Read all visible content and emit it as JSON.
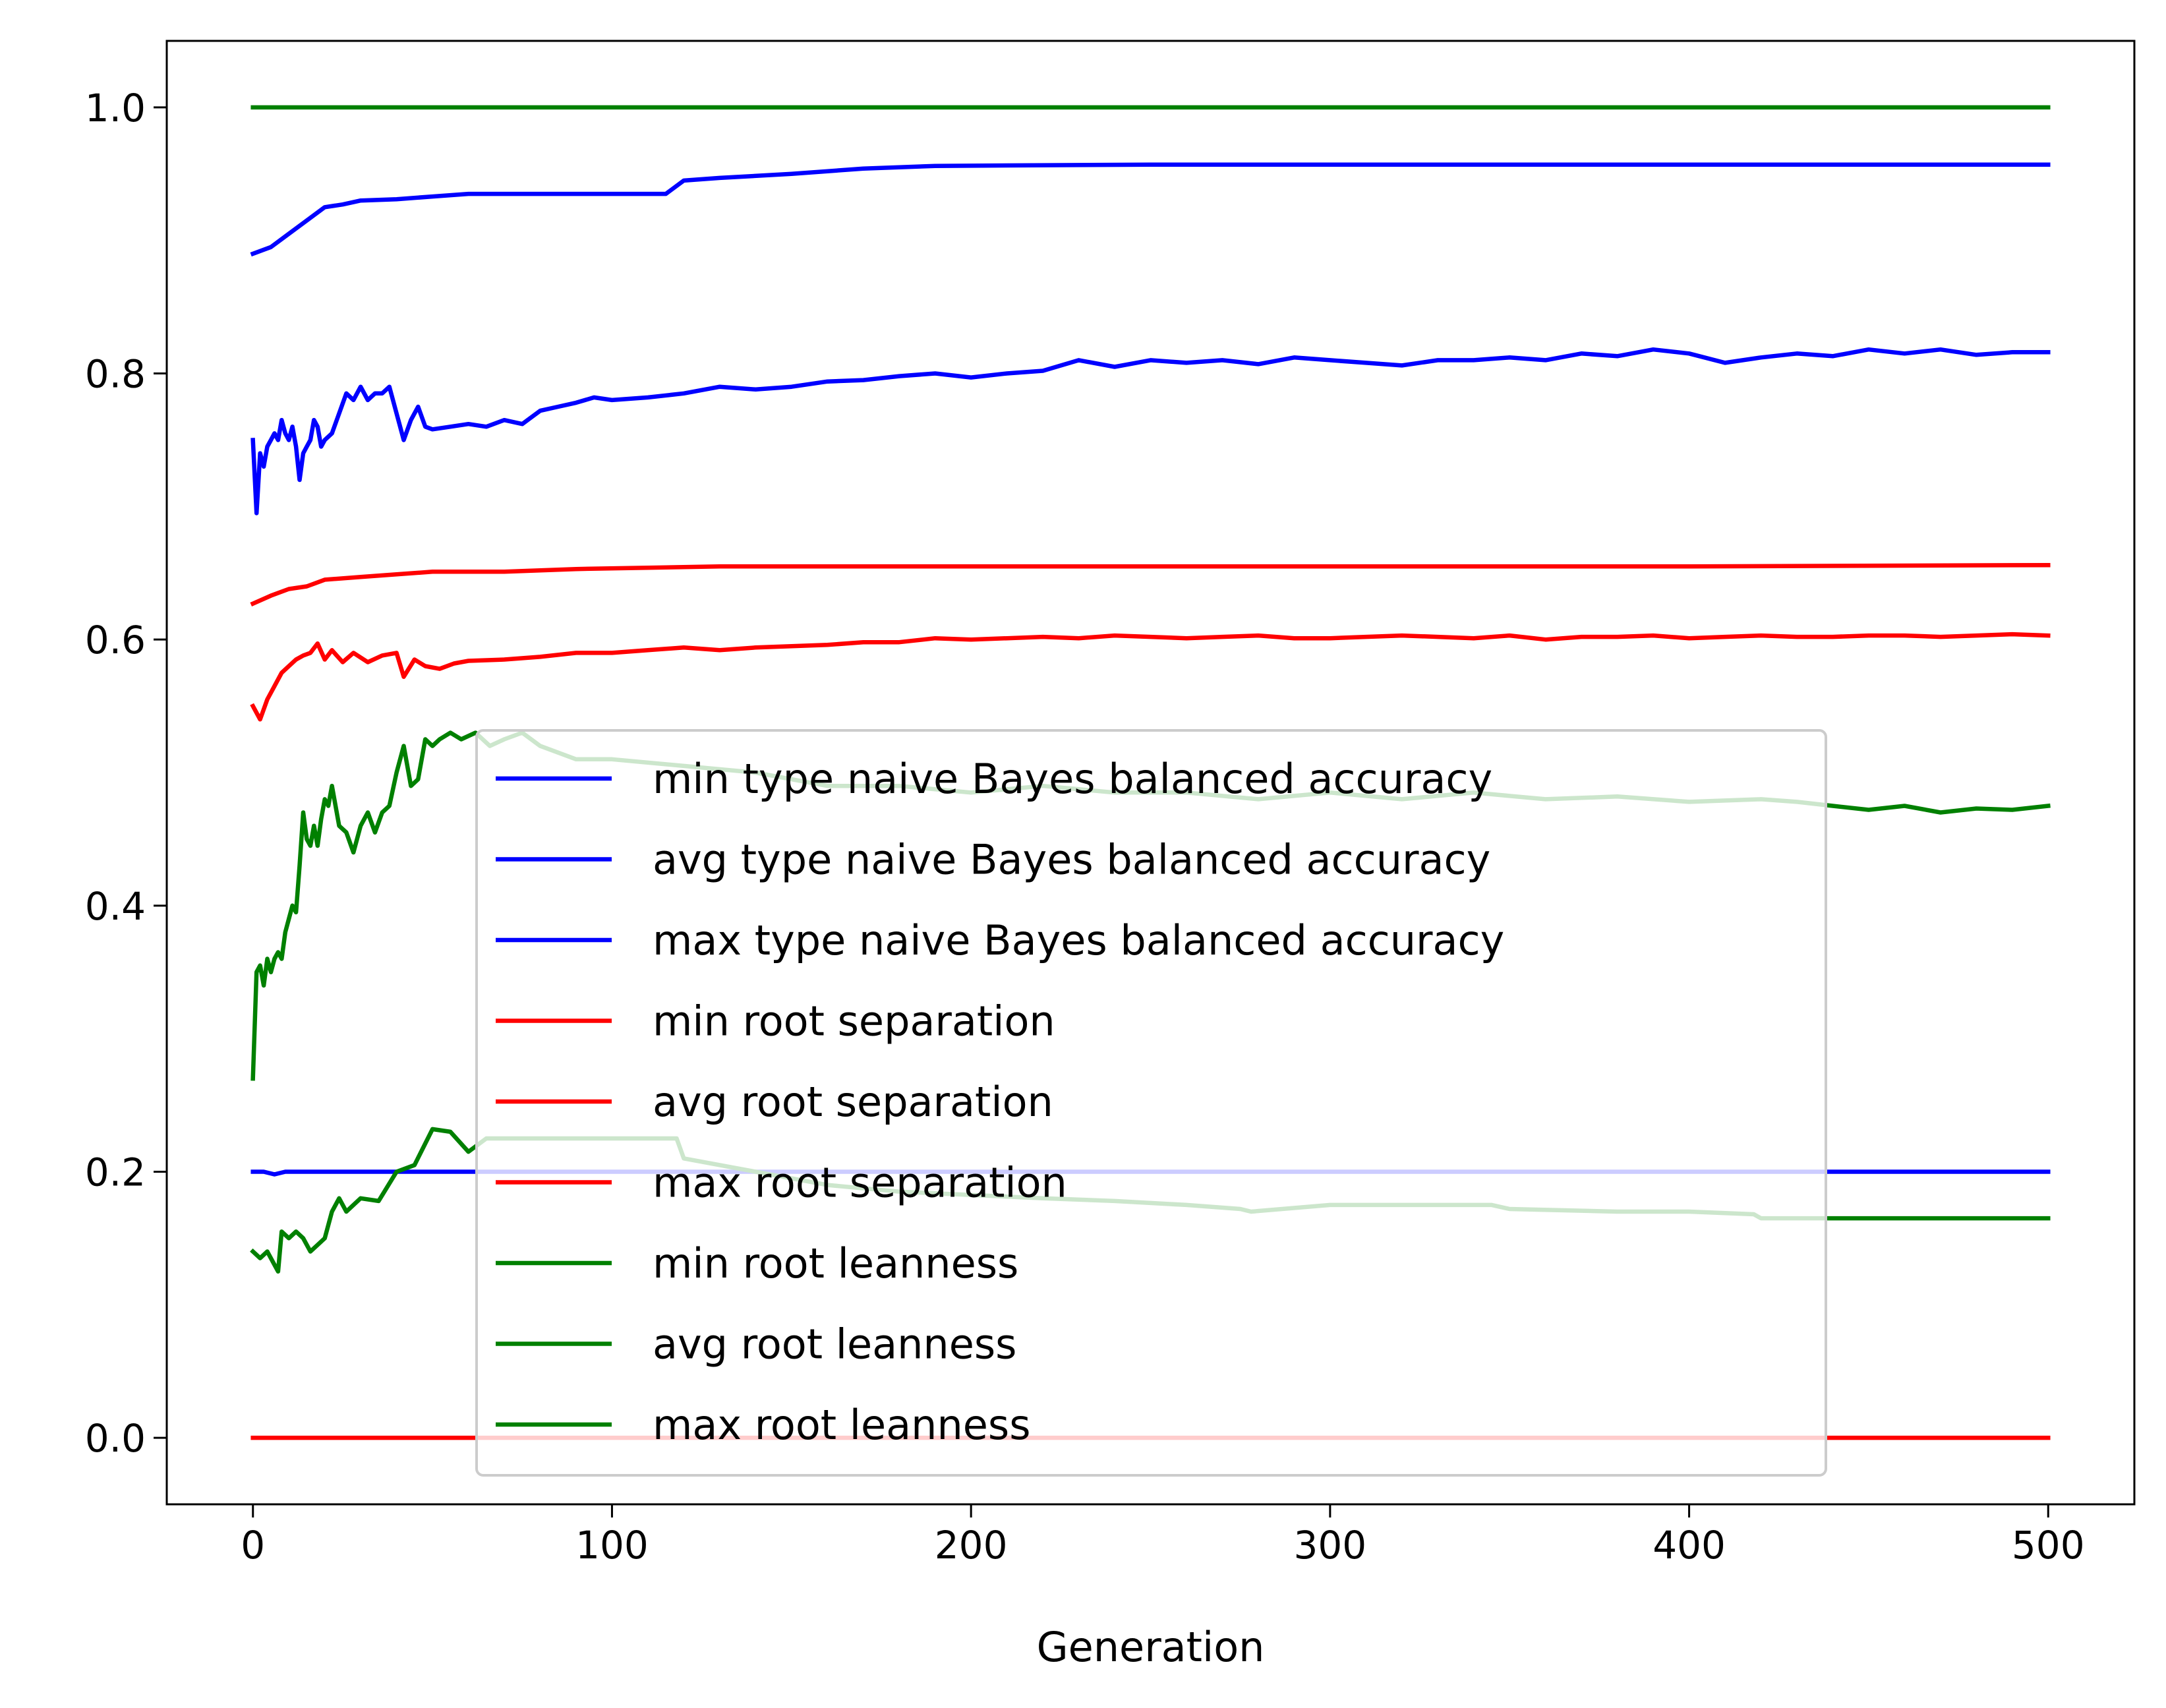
{
  "chart_data": {
    "type": "line",
    "xlabel": "Generation",
    "ylabel": "",
    "xlim": [
      -24,
      524
    ],
    "ylim": [
      -0.05,
      1.05
    ],
    "xticks": [
      0,
      100,
      200,
      300,
      400,
      500
    ],
    "yticks": [
      0.0,
      0.2,
      0.4,
      0.6,
      0.8,
      1.0
    ],
    "grid": false,
    "legend_position": "center",
    "series": [
      {
        "name": "min type naive Bayes balanced accuracy",
        "color": "#0000ff",
        "x": [
          0,
          3,
          6,
          9,
          500
        ],
        "y": [
          0.2,
          0.2,
          0.198,
          0.2,
          0.2
        ]
      },
      {
        "name": "avg type naive Bayes balanced accuracy",
        "color": "#0000ff",
        "x": [
          0,
          1,
          2,
          3,
          4,
          5,
          6,
          7,
          8,
          9,
          10,
          11,
          12,
          13,
          14,
          15,
          16,
          17,
          18,
          19,
          20,
          22,
          24,
          26,
          28,
          30,
          32,
          34,
          36,
          38,
          40,
          42,
          44,
          46,
          48,
          50,
          55,
          60,
          65,
          70,
          75,
          80,
          85,
          90,
          95,
          100,
          110,
          120,
          130,
          140,
          150,
          160,
          170,
          180,
          190,
          200,
          210,
          220,
          230,
          240,
          250,
          260,
          270,
          280,
          290,
          300,
          310,
          320,
          330,
          340,
          350,
          360,
          370,
          380,
          390,
          400,
          410,
          420,
          430,
          440,
          450,
          460,
          470,
          480,
          490,
          500
        ],
        "y": [
          0.75,
          0.695,
          0.74,
          0.73,
          0.745,
          0.75,
          0.755,
          0.75,
          0.765,
          0.755,
          0.75,
          0.76,
          0.745,
          0.72,
          0.74,
          0.745,
          0.75,
          0.765,
          0.76,
          0.745,
          0.75,
          0.755,
          0.77,
          0.785,
          0.78,
          0.79,
          0.78,
          0.785,
          0.785,
          0.79,
          0.77,
          0.75,
          0.765,
          0.775,
          0.76,
          0.758,
          0.76,
          0.762,
          0.76,
          0.765,
          0.762,
          0.772,
          0.775,
          0.778,
          0.782,
          0.78,
          0.782,
          0.785,
          0.79,
          0.788,
          0.79,
          0.794,
          0.795,
          0.798,
          0.8,
          0.797,
          0.8,
          0.802,
          0.81,
          0.805,
          0.81,
          0.808,
          0.81,
          0.807,
          0.812,
          0.81,
          0.808,
          0.806,
          0.81,
          0.81,
          0.812,
          0.81,
          0.815,
          0.813,
          0.818,
          0.815,
          0.808,
          0.812,
          0.815,
          0.813,
          0.818,
          0.815,
          0.818,
          0.814,
          0.816,
          0.816
        ]
      },
      {
        "name": "max type naive Bayes balanced accuracy",
        "color": "#0000ff",
        "x": [
          0,
          5,
          10,
          15,
          20,
          25,
          30,
          40,
          50,
          60,
          80,
          100,
          115,
          120,
          130,
          150,
          170,
          190,
          250,
          300,
          500
        ],
        "y": [
          0.89,
          0.895,
          0.905,
          0.915,
          0.925,
          0.927,
          0.93,
          0.931,
          0.933,
          0.935,
          0.935,
          0.935,
          0.935,
          0.945,
          0.947,
          0.95,
          0.954,
          0.956,
          0.957,
          0.957,
          0.957
        ]
      },
      {
        "name": "min root separation",
        "color": "#ff0000",
        "x": [
          0,
          500
        ],
        "y": [
          0.0,
          0.0
        ]
      },
      {
        "name": "avg root separation",
        "color": "#ff0000",
        "x": [
          0,
          2,
          4,
          6,
          8,
          10,
          12,
          14,
          16,
          18,
          20,
          22,
          25,
          28,
          32,
          36,
          40,
          42,
          45,
          48,
          52,
          56,
          60,
          70,
          80,
          90,
          100,
          110,
          120,
          130,
          140,
          150,
          160,
          170,
          180,
          190,
          200,
          210,
          220,
          230,
          240,
          250,
          260,
          270,
          280,
          290,
          300,
          310,
          320,
          330,
          340,
          350,
          360,
          370,
          380,
          390,
          400,
          410,
          420,
          430,
          440,
          450,
          460,
          470,
          480,
          490,
          500
        ],
        "y": [
          0.55,
          0.54,
          0.555,
          0.565,
          0.575,
          0.58,
          0.585,
          0.588,
          0.59,
          0.597,
          0.585,
          0.592,
          0.583,
          0.59,
          0.583,
          0.588,
          0.59,
          0.572,
          0.585,
          0.58,
          0.578,
          0.582,
          0.584,
          0.585,
          0.587,
          0.59,
          0.59,
          0.592,
          0.594,
          0.592,
          0.594,
          0.595,
          0.596,
          0.598,
          0.598,
          0.601,
          0.6,
          0.601,
          0.602,
          0.601,
          0.603,
          0.602,
          0.601,
          0.602,
          0.603,
          0.601,
          0.601,
          0.602,
          0.603,
          0.602,
          0.601,
          0.603,
          0.6,
          0.602,
          0.602,
          0.603,
          0.601,
          0.602,
          0.603,
          0.602,
          0.602,
          0.603,
          0.603,
          0.602,
          0.603,
          0.604,
          0.603
        ]
      },
      {
        "name": "max root separation",
        "color": "#ff0000",
        "x": [
          0,
          5,
          10,
          15,
          20,
          30,
          40,
          50,
          70,
          90,
          110,
          130,
          160,
          200,
          300,
          400,
          500
        ],
        "y": [
          0.627,
          0.633,
          0.638,
          0.64,
          0.645,
          0.647,
          0.649,
          0.651,
          0.651,
          0.653,
          0.654,
          0.655,
          0.655,
          0.655,
          0.655,
          0.655,
          0.656
        ]
      },
      {
        "name": "min root leanness",
        "color": "#008000",
        "x": [
          0,
          2,
          4,
          6,
          7,
          8,
          10,
          12,
          14,
          16,
          18,
          20,
          22,
          24,
          26,
          30,
          35,
          40,
          45,
          50,
          55,
          60,
          65,
          80,
          100,
          118,
          120,
          140,
          160,
          180,
          220,
          240,
          260,
          275,
          278,
          300,
          330,
          345,
          350,
          380,
          400,
          418,
          420,
          440,
          460,
          480,
          500
        ],
        "y": [
          0.14,
          0.135,
          0.14,
          0.13,
          0.125,
          0.155,
          0.15,
          0.155,
          0.15,
          0.14,
          0.145,
          0.15,
          0.17,
          0.18,
          0.17,
          0.18,
          0.178,
          0.2,
          0.205,
          0.232,
          0.23,
          0.215,
          0.225,
          0.225,
          0.225,
          0.225,
          0.21,
          0.2,
          0.19,
          0.185,
          0.18,
          0.178,
          0.175,
          0.172,
          0.17,
          0.175,
          0.175,
          0.175,
          0.172,
          0.17,
          0.17,
          0.168,
          0.165,
          0.165,
          0.165,
          0.165,
          0.165
        ]
      },
      {
        "name": "avg root leanness",
        "color": "#008000",
        "x": [
          0,
          1,
          2,
          3,
          4,
          5,
          6,
          7,
          8,
          9,
          10,
          11,
          12,
          13,
          14,
          15,
          16,
          17,
          18,
          19,
          20,
          21,
          22,
          24,
          26,
          28,
          30,
          32,
          34,
          36,
          38,
          40,
          42,
          44,
          46,
          48,
          50,
          52,
          55,
          58,
          62,
          66,
          70,
          75,
          80,
          90,
          100,
          120,
          140,
          160,
          180,
          200,
          220,
          240,
          260,
          280,
          300,
          320,
          340,
          360,
          380,
          400,
          420,
          430,
          440,
          450,
          460,
          470,
          480,
          490,
          500
        ],
        "y": [
          0.27,
          0.35,
          0.355,
          0.34,
          0.36,
          0.35,
          0.36,
          0.365,
          0.36,
          0.38,
          0.39,
          0.4,
          0.395,
          0.43,
          0.47,
          0.45,
          0.445,
          0.46,
          0.445,
          0.465,
          0.48,
          0.475,
          0.49,
          0.46,
          0.455,
          0.44,
          0.46,
          0.47,
          0.455,
          0.47,
          0.475,
          0.5,
          0.52,
          0.49,
          0.495,
          0.525,
          0.52,
          0.525,
          0.53,
          0.525,
          0.53,
          0.52,
          0.525,
          0.53,
          0.52,
          0.51,
          0.51,
          0.505,
          0.5,
          0.49,
          0.49,
          0.485,
          0.49,
          0.485,
          0.485,
          0.48,
          0.485,
          0.48,
          0.485,
          0.48,
          0.482,
          0.478,
          0.48,
          0.478,
          0.475,
          0.472,
          0.475,
          0.47,
          0.473,
          0.472,
          0.475
        ]
      },
      {
        "name": "max root leanness",
        "color": "#008000",
        "x": [
          0,
          500
        ],
        "y": [
          1.0,
          1.0
        ]
      }
    ]
  }
}
